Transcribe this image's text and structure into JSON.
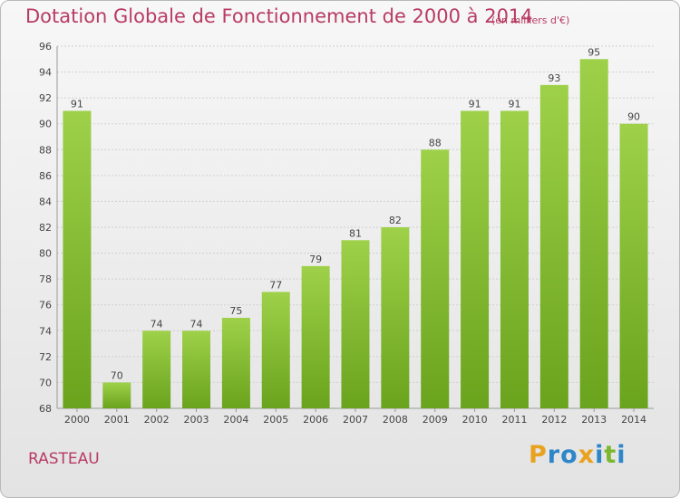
{
  "chart_data": {
    "type": "bar",
    "title": "Dotation Globale de Fonctionnement de 2000 à 2014",
    "subtitle": "(en milliers d'€)",
    "categories": [
      "2000",
      "2001",
      "2002",
      "2003",
      "2004",
      "2005",
      "2006",
      "2007",
      "2008",
      "2009",
      "2010",
      "2011",
      "2012",
      "2013",
      "2014"
    ],
    "values": [
      91,
      70,
      74,
      74,
      75,
      77,
      79,
      81,
      82,
      88,
      91,
      91,
      93,
      95,
      90
    ],
    "ylim": [
      68,
      96
    ],
    "yticks": [
      68,
      70,
      72,
      74,
      76,
      78,
      80,
      82,
      84,
      86,
      88,
      90,
      92,
      94,
      96
    ],
    "xlabel": "",
    "ylabel": "",
    "bar_color": "#7fbf2e",
    "grid": true
  },
  "commune": "RASTEAU",
  "logo": {
    "letters": [
      "P",
      "r",
      "o",
      "x",
      "i",
      "t",
      "i"
    ],
    "colors": [
      "#e8a21f",
      "#2d86c9",
      "#2d86c9",
      "#e8a21f",
      "#2d86c9",
      "#7cb82f",
      "#2d86c9"
    ]
  }
}
